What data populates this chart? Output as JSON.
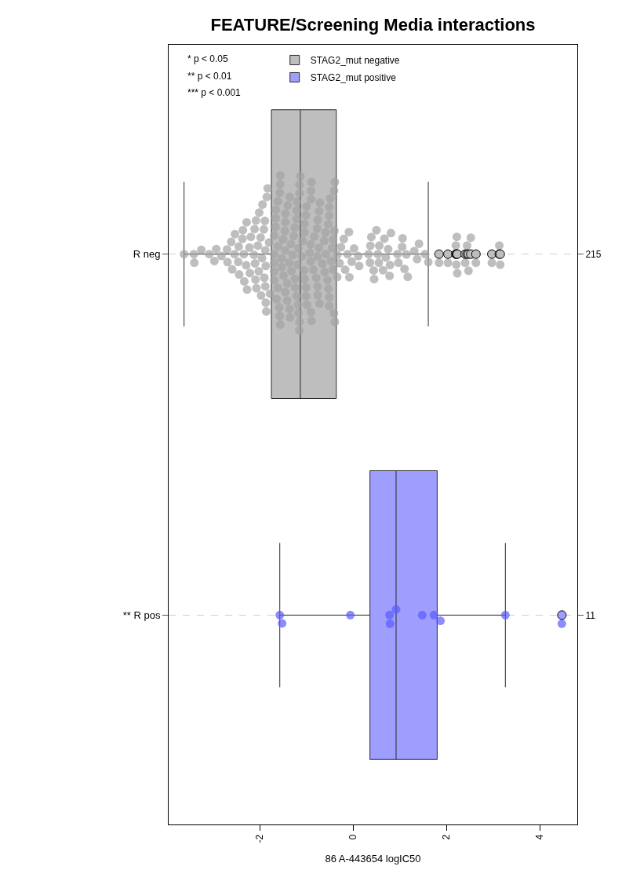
{
  "chart_data": {
    "type": "box",
    "title": "FEATURE/Screening Media interactions",
    "xlabel": "86 A-443654 logIC50",
    "orientation": "horizontal",
    "categories": [
      "R neg",
      "** R pos"
    ],
    "y2_categories": [
      "215",
      "11"
    ],
    "series": [
      {
        "name": "STAG2_mut negative",
        "type": "box",
        "color": "#bebebe",
        "boxes": [
          {
            "low": -3.62,
            "q1": -1.75,
            "median": -1.13,
            "q3": -0.36,
            "high": 1.61,
            "outliers": [
              1.84,
              2.03,
              2.2,
              2.21,
              2.22,
              2.23,
              2.4,
              2.44,
              2.47,
              2.52,
              2.63,
              2.97,
              3.13,
              3.15
            ]
          },
          null
        ]
      },
      {
        "name": "STAG2_mut positive",
        "type": "box",
        "color": "#9e9eff",
        "boxes": [
          null,
          {
            "low": -1.57,
            "q1": 0.36,
            "median": 0.92,
            "q3": 1.8,
            "high": 3.26,
            "outliers": [
              4.47
            ]
          }
        ]
      },
      {
        "type": "scatter",
        "color": "#bebebe",
        "x": [
          "R neg",
          "R neg",
          "R neg",
          "R neg",
          "R neg",
          "R neg",
          "R neg",
          "R neg",
          "R neg",
          "R neg",
          "R neg",
          "R neg",
          "R neg",
          "R neg",
          "R neg",
          "R neg",
          "R neg",
          "R neg",
          "R neg",
          "R neg",
          "R neg",
          "R neg",
          "R neg",
          "R neg",
          "R neg",
          "R neg",
          "R neg",
          "R neg",
          "R neg",
          "R neg",
          "R neg",
          "R neg",
          "R neg",
          "R neg",
          "R neg",
          "R neg",
          "R neg",
          "R neg",
          "R neg",
          "R neg",
          "R neg",
          "R neg",
          "R neg",
          "R neg",
          "R neg",
          "R neg",
          "R neg",
          "R neg",
          "R neg",
          "R neg",
          "R neg",
          "R neg",
          "R neg",
          "R neg",
          "R neg",
          "R neg",
          "R neg",
          "R neg",
          "R neg",
          "R neg",
          "R neg",
          "R neg",
          "R neg",
          "R neg",
          "R neg",
          "R neg",
          "R neg",
          "R neg",
          "R neg",
          "R neg",
          "R neg",
          "R neg",
          "R neg",
          "R neg",
          "R neg",
          "R neg",
          "R neg",
          "R neg",
          "R neg",
          "R neg",
          "R neg",
          "R neg",
          "R neg",
          "R neg",
          "R neg",
          "R neg",
          "R neg",
          "R neg",
          "R neg",
          "R neg",
          "R neg",
          "R neg",
          "R neg",
          "R neg",
          "R neg",
          "R neg",
          "R neg",
          "R neg",
          "R neg",
          "R neg",
          "R neg",
          "R neg",
          "R neg",
          "R neg",
          "R neg",
          "R neg",
          "R neg",
          "R neg",
          "R neg",
          "R neg",
          "R neg",
          "R neg",
          "R neg",
          "R neg",
          "R neg",
          "R neg",
          "R neg",
          "R neg",
          "R neg",
          "R neg",
          "R neg",
          "R neg",
          "R neg",
          "R neg",
          "R neg",
          "R neg",
          "R neg",
          "R neg",
          "R neg",
          "R neg",
          "R neg",
          "R neg",
          "R neg",
          "R neg",
          "R neg",
          "R neg",
          "R neg",
          "R neg",
          "R neg",
          "R neg",
          "R neg",
          "R neg",
          "R neg",
          "R neg",
          "R neg",
          "R neg",
          "R neg",
          "R neg",
          "R neg",
          "R neg",
          "R neg",
          "R neg",
          "R neg",
          "R neg",
          "R neg",
          "R neg",
          "R neg",
          "R neg",
          "R neg",
          "R neg",
          "R neg",
          "R neg",
          "R neg",
          "R neg",
          "R neg",
          "R neg",
          "R neg",
          "R neg",
          "R neg",
          "R neg",
          "R neg",
          "R neg",
          "R neg",
          "R neg",
          "R neg",
          "R neg",
          "R neg",
          "R neg",
          "R neg",
          "R neg",
          "R neg",
          "R neg",
          "R neg",
          "R neg",
          "R neg",
          "R neg",
          "R neg",
          "R neg",
          "R neg",
          "R neg",
          "R neg",
          "R neg",
          "R neg",
          "R neg",
          "R neg",
          "R neg",
          "R neg",
          "R neg",
          "R neg",
          "R neg",
          "R neg",
          "R neg",
          "R neg",
          "R neg",
          "R neg",
          "R neg",
          "R neg",
          "R neg",
          "R neg",
          "R neg",
          "R neg",
          "R neg",
          "R neg",
          "R neg",
          "R neg"
        ],
        "values": [
          -3.62,
          -3.41,
          -3.4,
          -3.25,
          -3.08,
          -2.97,
          -2.93,
          -2.82,
          -2.69,
          -2.7,
          -2.59,
          -2.61,
          -2.54,
          -2.53,
          -2.45,
          -2.46,
          -2.44,
          -2.37,
          -2.33,
          -2.34,
          -2.36,
          -2.29,
          -2.27,
          -2.28,
          -2.22,
          -2.19,
          -2.21,
          -2.12,
          -2.11,
          -2.1,
          -2.09,
          -2.08,
          -2.07,
          -2.02,
          -2.01,
          -2.04,
          -1.98,
          -1.97,
          -1.95,
          -1.94,
          -1.91,
          -1.9,
          -1.89,
          -1.88,
          -1.87,
          -1.86,
          -1.87,
          -1.85,
          -1.88,
          -1.83,
          -1.8,
          -1.78,
          -1.56,
          -1.17,
          -1.61,
          -1.45,
          -1.17,
          -0.89,
          -0.99,
          -0.39,
          -0.41,
          -0.73,
          -0.49,
          -0.76,
          -1.2,
          -1.61,
          -1.66,
          -1.45,
          -1.21,
          -1.01,
          -1.57,
          -1.24,
          -1.04,
          -1.41,
          -1.69,
          -1.25,
          -0.9,
          -0.77,
          -0.53,
          -0.51,
          -1.53,
          -1.32,
          -1.69,
          -1.21,
          -0.93,
          -0.76,
          -0.55,
          -0.34,
          -1.36,
          -1.56,
          -1.1,
          -0.79,
          -0.59,
          -0.43,
          -1.41,
          -1.21,
          -1.04,
          -0.85,
          -0.62,
          -0.45,
          -1.69,
          -1.5,
          -1.27,
          -0.91,
          -0.72,
          -0.51,
          -0.43,
          -1.57,
          -1.37,
          -1.15,
          -1.01,
          -0.61,
          -0.83,
          -1.53,
          -1.69,
          -1.33,
          -1.15,
          -0.91,
          -0.58,
          -0.39,
          -1.65,
          -1.49,
          -1.29,
          -1.08,
          -0.9,
          -0.73,
          -0.53,
          -1.45,
          -1.24,
          -1.04,
          -0.76,
          -0.51,
          -1.69,
          -1.46,
          -1.19,
          -1.0,
          -0.76,
          -0.51,
          -1.66,
          -1.45,
          -1.18,
          -1.01,
          -0.71,
          -0.41,
          -1.61,
          -1.36,
          -1.15,
          -0.9,
          -0.4,
          -1.56,
          -1.35,
          -1.15,
          -0.89,
          -1.13,
          -1.64,
          -1.58,
          -1.4,
          -1.05,
          -0.66,
          -0.47,
          -0.34,
          -0.26,
          -0.29,
          -0.12,
          -0.03,
          0.11,
          -0.09,
          -0.17,
          -0.2,
          -0.08,
          0.02,
          0.13,
          0.33,
          0.37,
          0.45,
          0.44,
          0.55,
          0.64,
          0.79,
          0.78,
          0.53,
          0.36,
          0.39,
          0.5,
          0.56,
          0.7,
          0.67,
          0.81,
          0.75,
          0.95,
          0.97,
          1.06,
          1.17,
          1.14,
          1.05,
          1.1,
          1.31,
          1.37,
          1.41,
          1.54,
          1.61,
          1.84,
          2.03,
          2.2,
          2.21,
          2.22,
          2.23,
          2.4,
          2.44,
          2.47,
          2.52,
          2.63,
          2.97,
          3.13,
          3.15
        ]
      },
      {
        "type": "scatter",
        "color": "#8c8cff",
        "x": [
          "** R pos",
          "** R pos",
          "** R pos",
          "** R pos",
          "** R pos",
          "** R pos",
          "** R pos",
          "** R pos",
          "** R pos",
          "** R pos",
          "** R pos"
        ],
        "values": [
          -1.57,
          -1.52,
          -0.06,
          0.78,
          0.79,
          0.92,
          1.48,
          1.73,
          1.87,
          3.26,
          4.47
        ]
      }
    ],
    "xlim": [
      -3.95,
      4.8
    ],
    "xticks": [
      -2,
      0,
      2,
      4
    ],
    "grid": "y",
    "legend": "top left",
    "marker": "circle",
    "annotations": [
      "* p < 0.05",
      "** p < 0.01",
      "*** p < 0.001"
    ]
  }
}
